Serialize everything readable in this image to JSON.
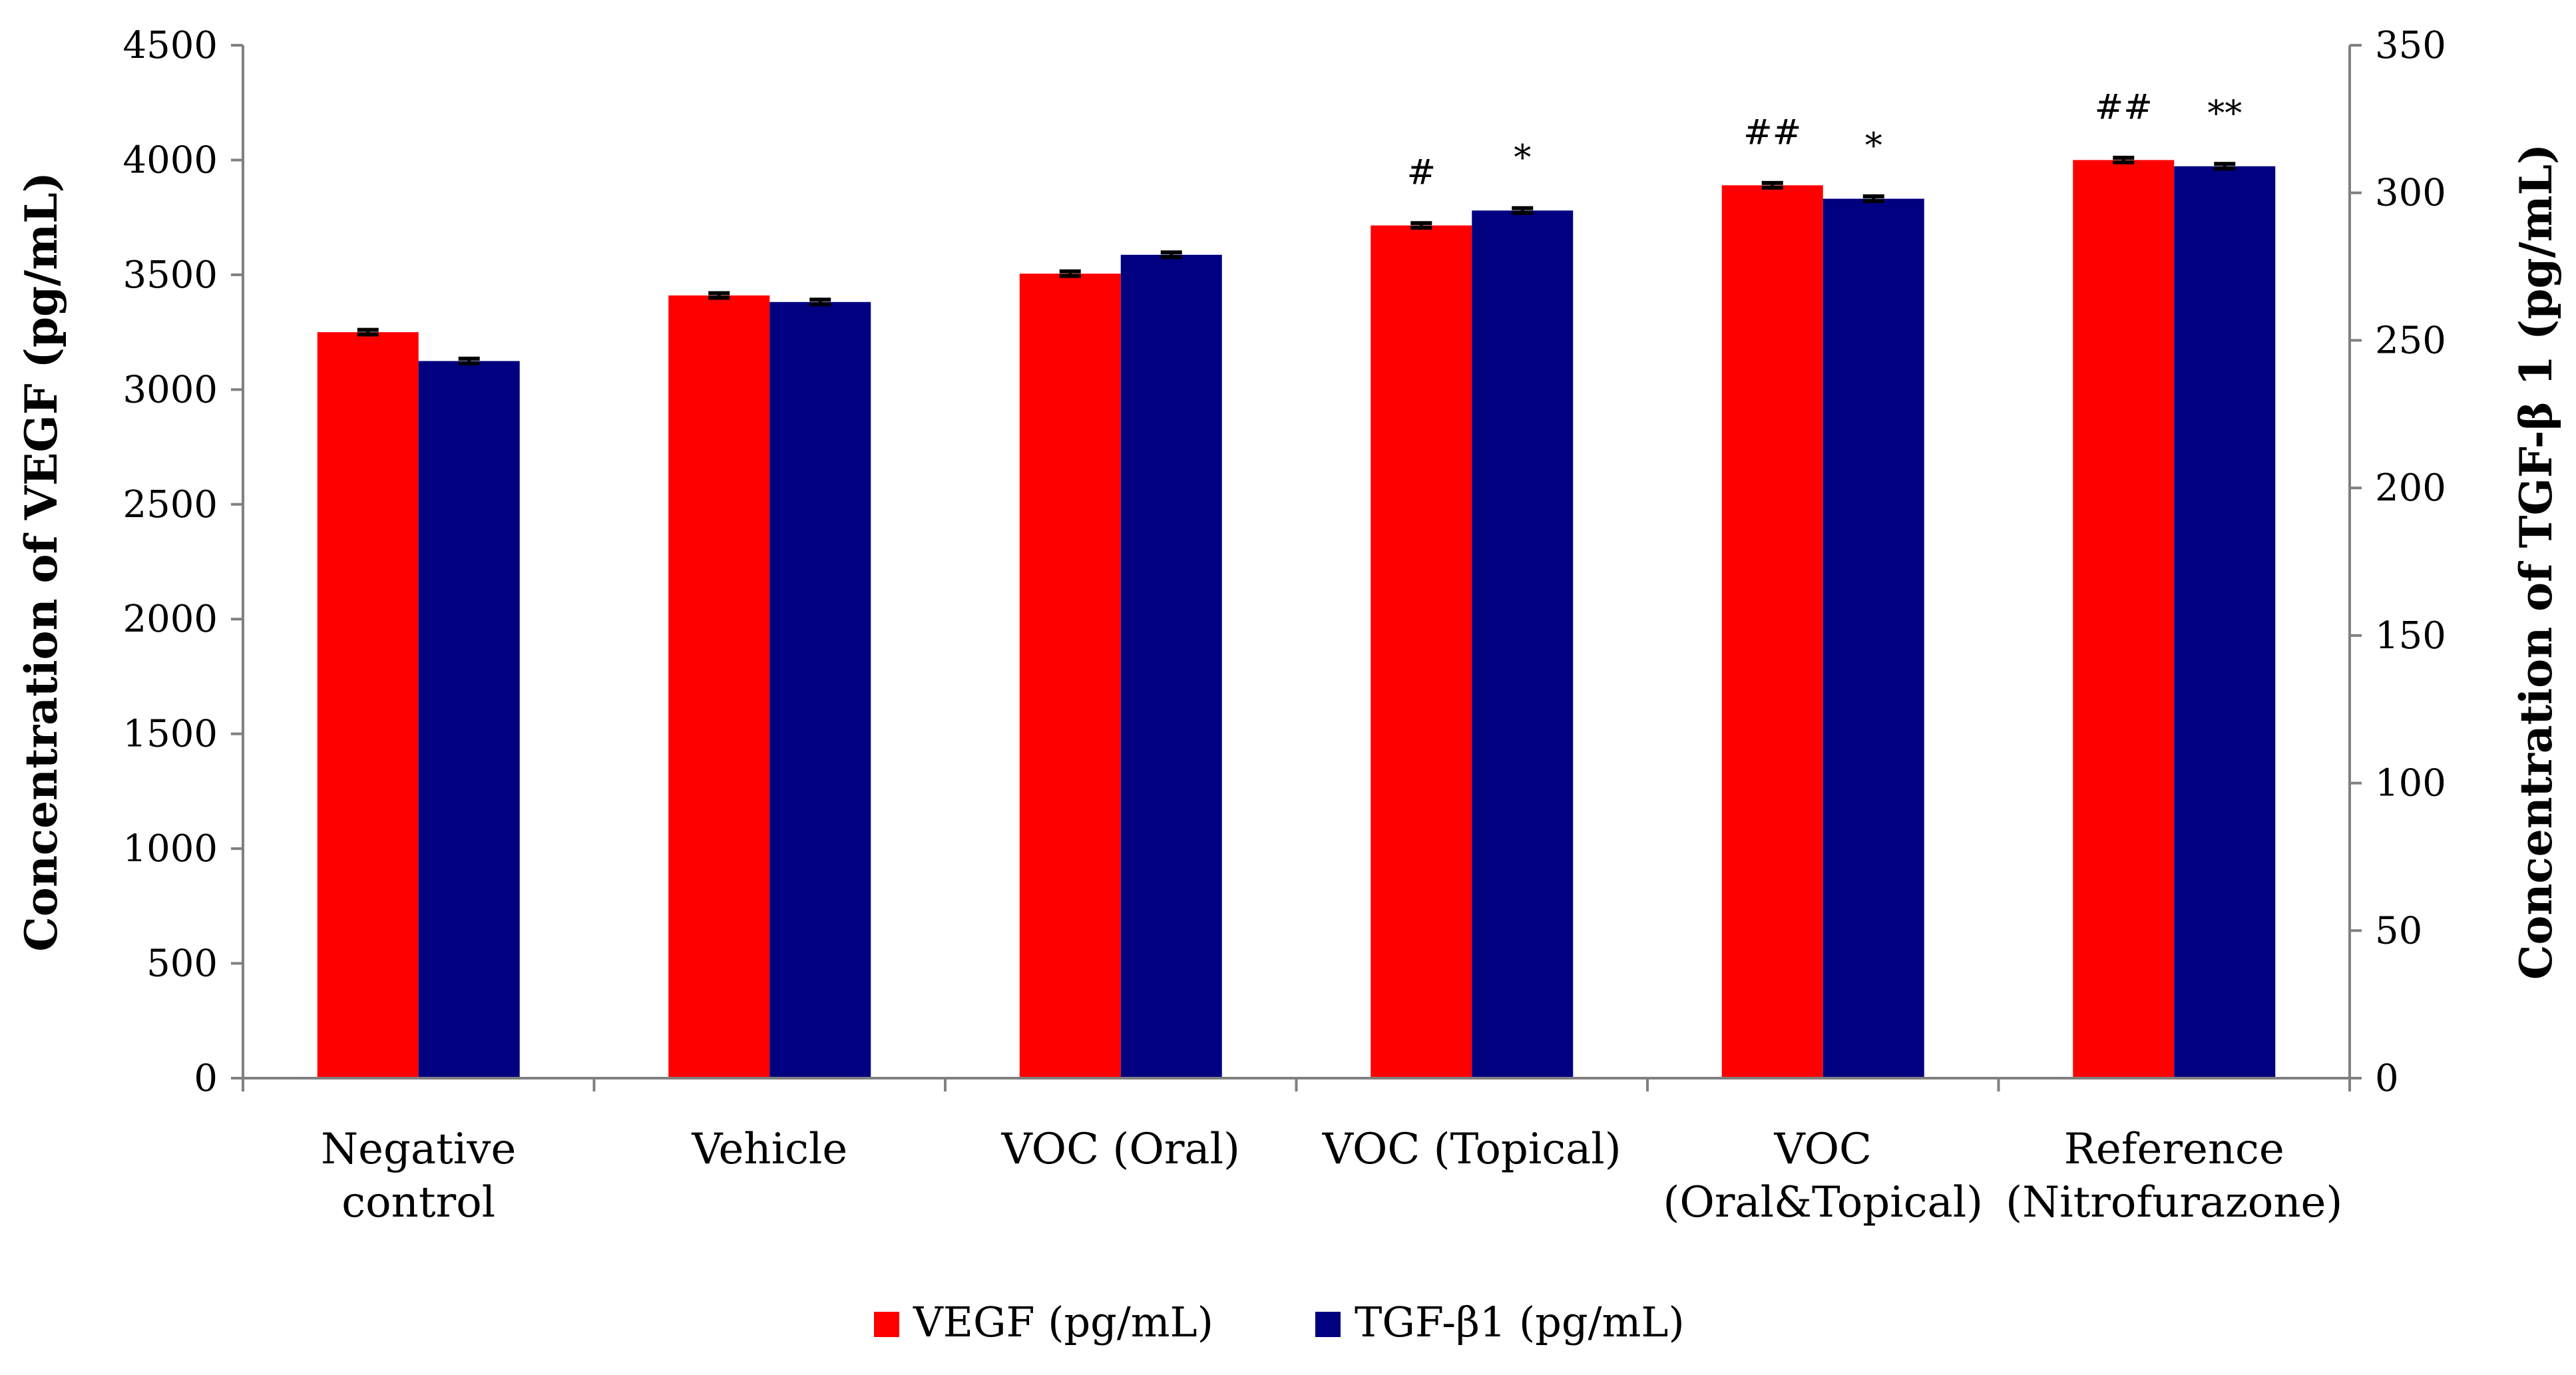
{
  "chart_data": {
    "type": "bar",
    "categories": [
      [
        "Negative",
        "control"
      ],
      [
        "Vehicle"
      ],
      [
        "VOC (Oral)"
      ],
      [
        "VOC (Topical)"
      ],
      [
        "VOC",
        "(Oral&Topical)"
      ],
      [
        "Reference",
        "(Nitrofurazone)"
      ]
    ],
    "series": [
      {
        "name": "VEGF (pg/mL)",
        "axis": "left",
        "color": "#FF0000",
        "values": [
          3250,
          3410,
          3505,
          3715,
          3890,
          4000
        ],
        "errors": [
          10,
          10,
          10,
          10,
          10,
          10
        ]
      },
      {
        "name": "TGF-β1 (pg/mL)",
        "axis": "right",
        "color": "#000080",
        "values": [
          243,
          263,
          279,
          294,
          298,
          309
        ],
        "errors": [
          0.8,
          0.8,
          0.8,
          0.8,
          0.8,
          0.8
        ]
      }
    ],
    "ylabel_left": "Concentration of VEGF (pg/mL)",
    "ylabel_right": "Concentration of TGF-β 1 (pg/mL)",
    "ylim_left": [
      0,
      4500
    ],
    "ylim_right": [
      0,
      350
    ],
    "yticks_left": [
      "0",
      "500",
      "1000",
      "1500",
      "2000",
      "2500",
      "3000",
      "3500",
      "4000",
      "4500"
    ],
    "yticks_right": [
      "0",
      "50",
      "100",
      "150",
      "200",
      "250",
      "300",
      "350"
    ],
    "annotations": [
      {
        "category": 3,
        "series": 0,
        "text": "#"
      },
      {
        "category": 3,
        "series": 1,
        "text": "*"
      },
      {
        "category": 4,
        "series": 0,
        "text": "##"
      },
      {
        "category": 4,
        "series": 1,
        "text": "*"
      },
      {
        "category": 5,
        "series": 0,
        "text": "##"
      },
      {
        "category": 5,
        "series": 1,
        "text": "**"
      }
    ],
    "legend": "bottom-center",
    "grid": false
  }
}
